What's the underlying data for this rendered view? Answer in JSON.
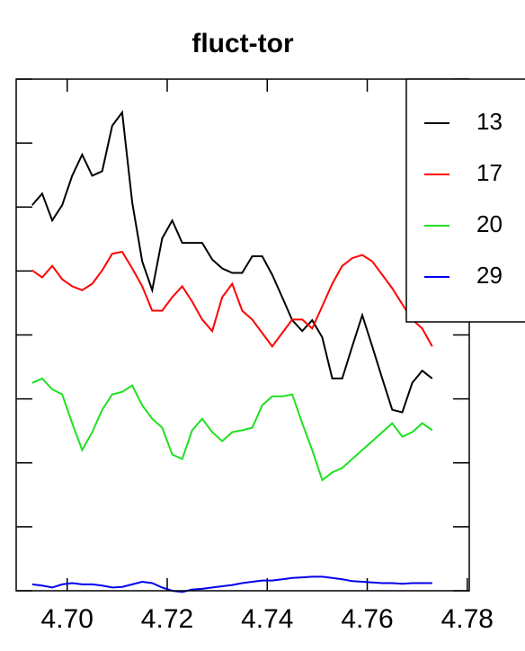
{
  "chart_data": {
    "type": "line",
    "title": "fluct-tor",
    "x": [
      4.693,
      4.695,
      4.697,
      4.699,
      4.701,
      4.703,
      4.705,
      4.707,
      4.709,
      4.711,
      4.713,
      4.715,
      4.717,
      4.719,
      4.721,
      4.723,
      4.725,
      4.727,
      4.729,
      4.731,
      4.733,
      4.735,
      4.737,
      4.739,
      4.741,
      4.743,
      4.745,
      4.747,
      4.749,
      4.751,
      4.753,
      4.755,
      4.757,
      4.759,
      4.761,
      4.763,
      4.765,
      4.767,
      4.769,
      4.771,
      4.773
    ],
    "series": [
      {
        "name": "13",
        "color": "#000000",
        "values": [
          6.03,
          6.21,
          5.79,
          6.03,
          6.49,
          6.82,
          6.49,
          6.56,
          7.27,
          7.48,
          6.07,
          5.15,
          4.7,
          5.51,
          5.79,
          5.44,
          5.44,
          5.44,
          5.18,
          5.04,
          4.97,
          4.97,
          5.23,
          5.23,
          4.94,
          4.59,
          4.23,
          4.06,
          4.23,
          3.96,
          3.32,
          3.32,
          3.82,
          4.31,
          3.82,
          3.32,
          2.83,
          2.79,
          3.25,
          3.44,
          3.32
        ]
      },
      {
        "name": "17",
        "color": "#ff0000",
        "values": [
          5.01,
          4.9,
          5.08,
          4.87,
          4.76,
          4.7,
          4.8,
          5.01,
          5.27,
          5.3,
          5.04,
          4.76,
          4.38,
          4.38,
          4.59,
          4.76,
          4.52,
          4.24,
          4.06,
          4.59,
          4.8,
          4.38,
          4.24,
          4.03,
          3.82,
          4.03,
          4.24,
          4.24,
          4.1,
          4.45,
          4.8,
          5.08,
          5.2,
          5.25,
          5.15,
          4.94,
          4.73,
          4.48,
          4.24,
          4.1,
          3.82
        ]
      },
      {
        "name": "20",
        "color": "#1fe01f",
        "values": [
          3.25,
          3.32,
          3.15,
          3.07,
          2.62,
          2.2,
          2.48,
          2.83,
          3.07,
          3.11,
          3.21,
          2.9,
          2.69,
          2.55,
          2.13,
          2.06,
          2.51,
          2.69,
          2.48,
          2.34,
          2.48,
          2.51,
          2.55,
          2.9,
          3.04,
          3.04,
          3.07,
          2.62,
          2.2,
          1.73,
          1.85,
          1.92,
          2.06,
          2.2,
          2.34,
          2.48,
          2.62,
          2.41,
          2.48,
          2.62,
          2.51
        ]
      },
      {
        "name": "29",
        "color": "#0000ee",
        "values": [
          0.1,
          0.08,
          0.05,
          0.1,
          0.12,
          0.1,
          0.1,
          0.08,
          0.05,
          0.06,
          0.1,
          0.14,
          0.12,
          0.05,
          0.0,
          -0.02,
          0.02,
          0.03,
          0.05,
          0.07,
          0.09,
          0.12,
          0.14,
          0.16,
          0.16,
          0.18,
          0.2,
          0.21,
          0.22,
          0.22,
          0.2,
          0.18,
          0.15,
          0.14,
          0.13,
          0.12,
          0.12,
          0.11,
          0.12,
          0.12,
          0.12
        ]
      }
    ],
    "xlim": [
      4.6898,
      4.7804
    ],
    "xticks": [
      {
        "value": 4.7,
        "label": "4.70"
      },
      {
        "value": 4.72,
        "label": "4.72"
      },
      {
        "value": 4.74,
        "label": "4.74"
      },
      {
        "value": 4.76,
        "label": "4.76"
      },
      {
        "value": 4.78,
        "label": "4.78"
      }
    ],
    "ylim": [
      0,
      8
    ],
    "yticks": [
      0,
      1,
      2,
      3,
      4,
      5,
      6,
      7,
      8
    ],
    "legend": "topright"
  }
}
